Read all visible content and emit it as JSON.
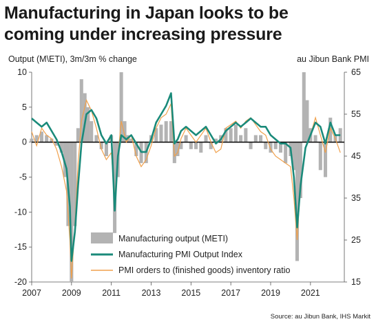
{
  "title_lines": [
    "Manufacturing in Japan looks to be",
    "coming under increasing pressure"
  ],
  "source": "Source: au Jibun Bank, IHS Markit",
  "colors": {
    "output": "#b3b3b3",
    "pmi": "#1a8a7a",
    "ratio": "#f0a04b"
  },
  "chart_data": {
    "type": "bar",
    "title": "Manufacturing in Japan looks to be coming under increasing pressure",
    "ylabel_left": "Output (M\\ETI), 3m/3m % change",
    "ylabel_right": "au Jibun Bank PMI",
    "ylim_left": [
      -20,
      10
    ],
    "ylim_right": [
      15,
      65
    ],
    "xlim": [
      2007,
      2022.7
    ],
    "x_ticks": [
      "2007",
      "2009",
      "2011",
      "2013",
      "2015",
      "2017",
      "2019",
      "2021"
    ],
    "y_ticks_left": [
      "10",
      "5",
      "0",
      "-5",
      "-10",
      "-15",
      "-20"
    ],
    "y_ticks_right": [
      "65",
      "55",
      "45",
      "35",
      "25",
      "15"
    ],
    "legend": [
      "Manufacturing output (METI)",
      "Manufacturing PMI Output Index",
      "PMI orders to (finished goods) inventory ratio"
    ],
    "series": [
      {
        "name": "Manufacturing output (METI)",
        "type": "bar",
        "axis": "left",
        "x": [
          2007.0,
          2007.25,
          2007.5,
          2007.75,
          2008.0,
          2008.25,
          2008.5,
          2008.67,
          2008.83,
          2009.0,
          2009.17,
          2009.33,
          2009.5,
          2009.67,
          2009.83,
          2010.0,
          2010.25,
          2010.5,
          2010.75,
          2011.0,
          2011.17,
          2011.33,
          2011.5,
          2011.67,
          2011.83,
          2012.0,
          2012.25,
          2012.5,
          2012.75,
          2013.0,
          2013.25,
          2013.5,
          2013.75,
          2014.0,
          2014.17,
          2014.33,
          2014.5,
          2014.75,
          2015.0,
          2015.25,
          2015.5,
          2015.75,
          2016.0,
          2016.25,
          2016.5,
          2016.75,
          2017.0,
          2017.25,
          2017.5,
          2017.75,
          2018.0,
          2018.25,
          2018.5,
          2018.75,
          2019.0,
          2019.25,
          2019.5,
          2019.75,
          2020.0,
          2020.17,
          2020.33,
          2020.5,
          2020.67,
          2020.83,
          2021.0,
          2021.25,
          2021.5,
          2021.75,
          2022.0,
          2022.25,
          2022.5
        ],
        "values": [
          0.5,
          1.0,
          1.5,
          1.0,
          0.5,
          -0.5,
          -1.5,
          -5.0,
          -12.0,
          -20.0,
          -12.0,
          2.0,
          9.0,
          7.0,
          5.0,
          3.0,
          1.0,
          -1.0,
          -2.0,
          1.0,
          -13.0,
          -5.0,
          10.0,
          3.0,
          1.0,
          0.5,
          -2.0,
          -3.0,
          -3.0,
          1.0,
          2.0,
          2.5,
          3.0,
          3.0,
          -3.0,
          -2.0,
          -1.0,
          1.0,
          -1.0,
          -1.0,
          -1.5,
          1.0,
          -1.0,
          0.5,
          1.0,
          2.0,
          2.0,
          2.5,
          1.0,
          2.0,
          -1.0,
          1.0,
          1.0,
          -1.0,
          -1.5,
          -1.0,
          -1.5,
          -3.0,
          -2.0,
          -4.0,
          -17.0,
          -8.0,
          10.0,
          6.0,
          2.0,
          1.0,
          -4.0,
          -5.0,
          3.5,
          1.0,
          2.0
        ]
      },
      {
        "name": "Manufacturing PMI Output Index",
        "type": "line",
        "axis": "right",
        "x": [
          2007.0,
          2007.25,
          2007.5,
          2007.75,
          2008.0,
          2008.25,
          2008.5,
          2008.75,
          2008.92,
          2009.0,
          2009.17,
          2009.33,
          2009.5,
          2009.75,
          2010.0,
          2010.25,
          2010.5,
          2010.75,
          2011.0,
          2011.17,
          2011.33,
          2011.5,
          2011.75,
          2012.0,
          2012.25,
          2012.5,
          2012.75,
          2013.0,
          2013.25,
          2013.5,
          2013.75,
          2014.0,
          2014.17,
          2014.33,
          2014.5,
          2014.75,
          2015.0,
          2015.25,
          2015.5,
          2015.75,
          2016.0,
          2016.25,
          2016.5,
          2016.75,
          2017.0,
          2017.25,
          2017.5,
          2017.75,
          2018.0,
          2018.25,
          2018.5,
          2018.75,
          2019.0,
          2019.25,
          2019.5,
          2019.75,
          2020.0,
          2020.17,
          2020.33,
          2020.5,
          2020.75,
          2021.0,
          2021.25,
          2021.5,
          2021.75,
          2022.0,
          2022.25,
          2022.5
        ],
        "values": [
          54.0,
          53.0,
          52.0,
          53.0,
          51.0,
          49.0,
          46.0,
          42.0,
          33.0,
          20.0,
          27.0,
          38.0,
          48.0,
          55.0,
          56.0,
          54.0,
          50.0,
          48.0,
          50.0,
          32.0,
          45.0,
          50.0,
          49.0,
          50.0,
          48.0,
          46.0,
          46.0,
          49.0,
          53.0,
          55.0,
          57.0,
          60.0,
          48.0,
          49.0,
          51.0,
          52.0,
          51.0,
          50.0,
          51.0,
          52.0,
          50.0,
          48.0,
          49.0,
          51.0,
          52.0,
          53.0,
          52.0,
          53.0,
          54.0,
          53.0,
          52.0,
          52.0,
          50.0,
          49.0,
          48.0,
          48.0,
          47.0,
          40.0,
          28.0,
          38.0,
          47.0,
          50.0,
          53.0,
          52.0,
          48.0,
          53.0,
          50.0,
          50.0
        ]
      },
      {
        "name": "PMI orders to (finished goods) inventory ratio",
        "type": "line",
        "axis": "left",
        "x": [
          2007.0,
          2007.25,
          2007.5,
          2007.75,
          2008.0,
          2008.25,
          2008.5,
          2008.75,
          2008.92,
          2009.0,
          2009.17,
          2009.33,
          2009.5,
          2009.75,
          2010.0,
          2010.25,
          2010.5,
          2010.75,
          2011.0,
          2011.17,
          2011.33,
          2011.5,
          2011.75,
          2012.0,
          2012.25,
          2012.5,
          2012.75,
          2013.0,
          2013.25,
          2013.5,
          2013.75,
          2014.0,
          2014.17,
          2014.33,
          2014.5,
          2014.75,
          2015.0,
          2015.25,
          2015.5,
          2015.75,
          2016.0,
          2016.25,
          2016.5,
          2016.75,
          2017.0,
          2017.25,
          2017.5,
          2017.75,
          2018.0,
          2018.25,
          2018.5,
          2018.75,
          2019.0,
          2019.25,
          2019.5,
          2019.75,
          2020.0,
          2020.17,
          2020.33,
          2020.5,
          2020.75,
          2021.0,
          2021.25,
          2021.5,
          2021.75,
          2022.0,
          2022.25,
          2022.5
        ],
        "values": [
          1.5,
          -0.5,
          2.0,
          1.0,
          0.5,
          -1.0,
          -3.5,
          -7.0,
          -14.0,
          -19.5,
          -12.0,
          -3.0,
          3.0,
          6.0,
          4.5,
          2.0,
          -1.0,
          -2.5,
          -1.5,
          -8.0,
          -2.0,
          3.0,
          0.0,
          1.0,
          -2.0,
          -3.5,
          -2.5,
          -0.5,
          2.0,
          3.5,
          4.0,
          5.5,
          -2.0,
          -1.5,
          0.5,
          2.0,
          1.0,
          0.0,
          1.0,
          2.0,
          0.0,
          -1.5,
          -1.0,
          2.0,
          2.5,
          3.0,
          2.0,
          3.0,
          3.5,
          2.5,
          1.5,
          1.0,
          -1.0,
          -2.0,
          -2.5,
          -3.0,
          -3.5,
          -8.0,
          -14.0,
          -6.0,
          -1.0,
          1.0,
          3.5,
          1.0,
          -1.5,
          2.0,
          0.5,
          -1.5
        ]
      }
    ]
  }
}
